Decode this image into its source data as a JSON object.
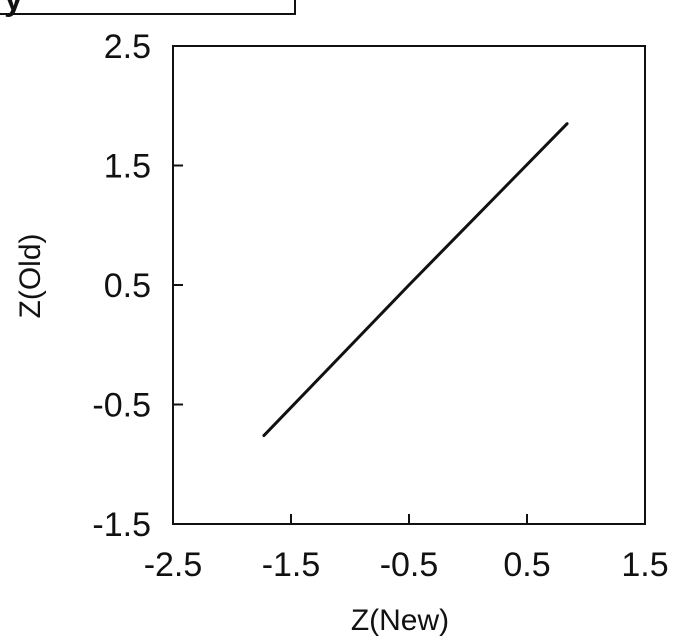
{
  "chart_data": {
    "type": "line",
    "title": "",
    "xlabel": "Z(New)",
    "ylabel": "Z(Old)",
    "xlim": [
      -2.5,
      1.5
    ],
    "ylim": [
      -1.5,
      2.5
    ],
    "xticks": [
      -2.5,
      -1.5,
      -0.5,
      0.5,
      1.5
    ],
    "yticks": [
      -1.5,
      -0.5,
      0.5,
      1.5,
      2.5
    ],
    "xtick_labels": [
      "-2.5",
      "-1.5",
      "-0.5",
      "0.5",
      "1.5"
    ],
    "ytick_labels": [
      "-1.5",
      "-0.5",
      "0.5",
      "1.5",
      "2.5"
    ],
    "grid": false,
    "legend": "none",
    "series": [
      {
        "x": [
          -1.73,
          -0.5,
          0.84
        ],
        "y": [
          -0.76,
          0.5,
          1.85
        ]
      }
    ],
    "line_color": "#111111"
  },
  "header_fragment": {
    "text": "y"
  }
}
